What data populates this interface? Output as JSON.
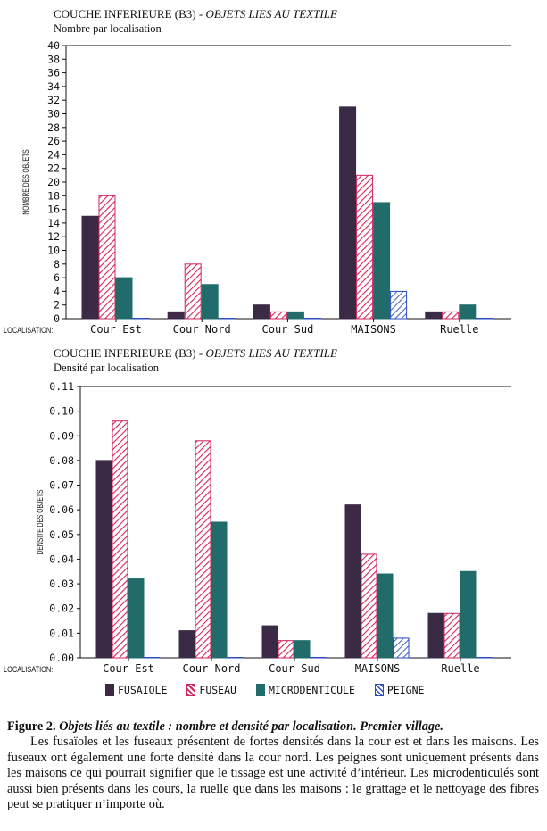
{
  "charts_header": [
    {
      "title_main": "COUCHE INFERIEURE (B3) - ",
      "title_italic": "OBJETS LIES AU TEXTILE",
      "subtitle": "Nombre par localisation"
    },
    {
      "title_main": "COUCHE INFERIEURE (B3) - ",
      "title_italic": "OBJETS LIES AU TEXTILE",
      "subtitle": "Densité par localisation"
    }
  ],
  "legend": {
    "items": [
      "FUSAIOLE",
      "FUSEAU",
      "MICRODENTICULE",
      "PEIGNE"
    ]
  },
  "caption": {
    "figure_label": "Figure 2. ",
    "figure_title": "Objets liés au textile : nombre et densité par localisation.  Premier village.",
    "body": "Les fusaïoles et les fuseaux présentent de fortes densités dans la cour est et dans les maisons. Les fuseaux ont également une forte densité dans la cour nord. Les peignes sont uniquement présents dans les maisons ce qui pourrait signifier que le tissage est une activité d’intérieur. Les microdenticulés sont aussi bien présents dans les cours, la ruelle que dans les maisons : le grattage et le nettoyage des fibres peut se pratiquer n’importe où."
  },
  "chart_data": [
    {
      "type": "bar",
      "x_prefix": "LOCALISATION:",
      "categories": [
        "Cour Est",
        "Cour Nord",
        "Cour Sud",
        "MAISONS",
        "Ruelle"
      ],
      "ylabel": "NOMBRE DES OBJETS",
      "ylim": [
        0,
        40
      ],
      "yticks": [
        "0",
        "2",
        "4",
        "6",
        "8",
        "10",
        "12",
        "14",
        "16",
        "18",
        "20",
        "22",
        "24",
        "26",
        "28",
        "30",
        "32",
        "34",
        "36",
        "38",
        "40"
      ],
      "grid": false,
      "series": [
        {
          "name": "FUSAIOLE",
          "values": [
            15,
            1,
            2,
            31,
            1
          ]
        },
        {
          "name": "FUSEAU",
          "values": [
            18,
            8,
            1,
            21,
            1
          ]
        },
        {
          "name": "MICRODENTICULE",
          "values": [
            6,
            5,
            1,
            17,
            2
          ]
        },
        {
          "name": "PEIGNE",
          "values": [
            0,
            0,
            0,
            4,
            0
          ]
        }
      ]
    },
    {
      "type": "bar",
      "x_prefix": "LOCALISATION:",
      "categories": [
        "Cour Est",
        "Cour Nord",
        "Cour Sud",
        "MAISONS",
        "Ruelle"
      ],
      "ylabel": "DENSITE DES OBJETS",
      "ylim": [
        0,
        0.11
      ],
      "yticks": [
        "0.00",
        "0.01",
        "0.02",
        "0.03",
        "0.04",
        "0.05",
        "0.06",
        "0.07",
        "0.08",
        "0.09",
        "0.10",
        "0.11"
      ],
      "grid": false,
      "series": [
        {
          "name": "FUSAIOLE",
          "values": [
            0.08,
            0.011,
            0.013,
            0.062,
            0.018
          ]
        },
        {
          "name": "FUSEAU",
          "values": [
            0.096,
            0.088,
            0.007,
            0.042,
            0.018
          ]
        },
        {
          "name": "MICRODENTICULE",
          "values": [
            0.032,
            0.055,
            0.007,
            0.034,
            0.035
          ]
        },
        {
          "name": "PEIGNE",
          "values": [
            0,
            0,
            0,
            0.008,
            0
          ]
        }
      ]
    }
  ],
  "colors": {
    "fusaiole": "#3b2a45",
    "fuseau": "#d2245a",
    "microdenticule": "#226b6b",
    "peigne": "#2a4bc4"
  }
}
